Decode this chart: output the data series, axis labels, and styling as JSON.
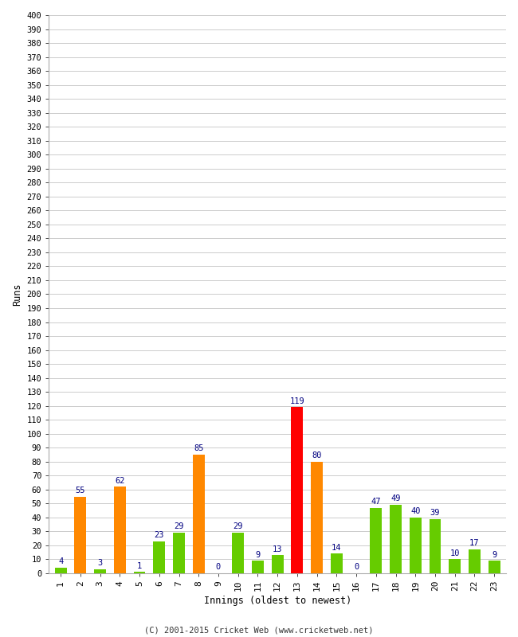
{
  "xlabel": "Innings (oldest to newest)",
  "ylabel": "Runs",
  "innings": [
    1,
    2,
    3,
    4,
    5,
    6,
    7,
    8,
    9,
    10,
    11,
    12,
    13,
    14,
    15,
    16,
    17,
    18,
    19,
    20,
    21,
    22,
    23
  ],
  "values": [
    4,
    55,
    3,
    62,
    1,
    23,
    29,
    85,
    0,
    29,
    9,
    13,
    119,
    80,
    14,
    0,
    47,
    49,
    40,
    39,
    10,
    17,
    9
  ],
  "colors": [
    "#66cc00",
    "#ff8800",
    "#66cc00",
    "#ff8800",
    "#66cc00",
    "#66cc00",
    "#66cc00",
    "#ff8800",
    "#66cc00",
    "#66cc00",
    "#66cc00",
    "#66cc00",
    "#ff0000",
    "#ff8800",
    "#66cc00",
    "#66cc00",
    "#66cc00",
    "#66cc00",
    "#66cc00",
    "#66cc00",
    "#66cc00",
    "#66cc00",
    "#66cc00"
  ],
  "ylim": [
    0,
    400
  ],
  "background_color": "#ffffff",
  "grid_color": "#cccccc",
  "label_color": "#000080",
  "footer": "(C) 2001-2015 Cricket Web (www.cricketweb.net)",
  "font_family": "monospace"
}
